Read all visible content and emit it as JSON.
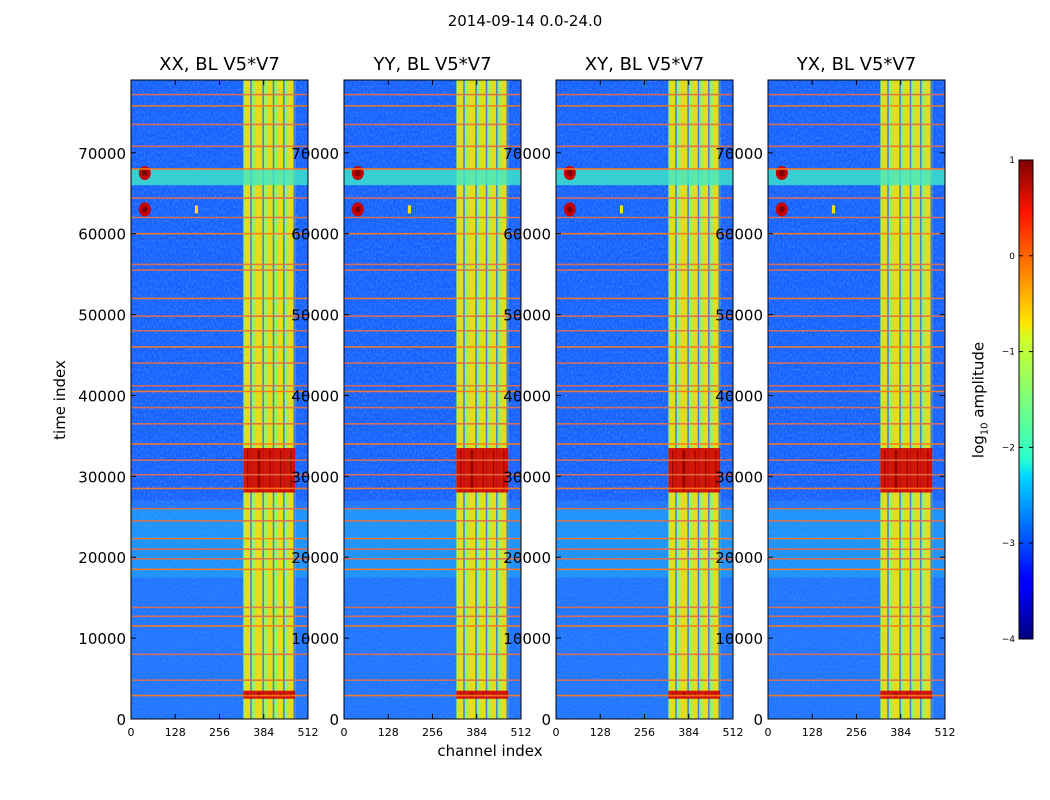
{
  "chart_data": {
    "type": "heatmap",
    "suptitle": "2014-09-14 0.0-24.0",
    "xlabel": "channel index",
    "ylabel": "time index",
    "xlim": [
      0,
      512
    ],
    "ylim": [
      0,
      79000
    ],
    "x_ticks": [
      0,
      128,
      256,
      384,
      512
    ],
    "y_ticks": [
      0,
      10000,
      20000,
      30000,
      40000,
      50000,
      60000,
      70000
    ],
    "panels": [
      {
        "title": "XX, BL V5*V7",
        "pol": "XX"
      },
      {
        "title": "YY, BL V5*V7",
        "pol": "YY"
      },
      {
        "title": "XY, BL V5*V7",
        "pol": "XY"
      },
      {
        "title": "YX, BL V5*V7",
        "pol": "YX"
      }
    ],
    "features": {
      "bright_band_channels": [
        325,
        475
      ],
      "bright_band_channels_inner": [
        [
          330,
          345
        ],
        [
          360,
          380
        ],
        [
          395,
          410
        ],
        [
          425,
          440
        ],
        [
          455,
          470
        ]
      ],
      "strong_burst_times": [
        [
          28000,
          33500
        ],
        [
          2500,
          3500
        ]
      ],
      "rfi_block_times": [
        66000,
        68000
      ],
      "rfi_spot": {
        "channel": 40,
        "times": [
          63000,
          67500
        ]
      },
      "flag_lines_times": [
        2900,
        4800,
        8000,
        11500,
        12700,
        13800,
        18500,
        19800,
        21000,
        22300,
        24500,
        26000,
        28500,
        30200,
        32000,
        34000,
        36500,
        38500,
        40500,
        41200,
        44000,
        46000,
        48000,
        49800,
        52000,
        55500,
        56200,
        60000,
        62000,
        64400,
        68000,
        70800,
        73500,
        75800,
        77200
      ]
    },
    "colorbar": {
      "label_base": "log",
      "label_sub": "10",
      "label_rest": " amplitude",
      "vmin": -4,
      "vmax": 1,
      "ticks": [
        1,
        0,
        -1,
        -2,
        -3,
        -4
      ],
      "tick_labels": [
        "1",
        "0",
        "−1",
        "−2",
        "−3",
        "−4"
      ],
      "colormap": "jet"
    }
  }
}
